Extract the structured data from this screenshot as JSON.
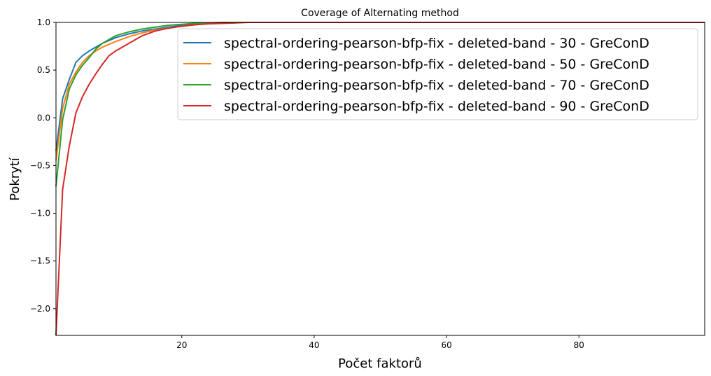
{
  "chart_data": {
    "type": "line",
    "title": "Coverage of Alternating method",
    "xlabel": "Počet faktorů",
    "ylabel": "Pokrytí",
    "xlim": [
      1,
      99
    ],
    "ylim": [
      -2.28,
      1.0
    ],
    "xticks": [
      20,
      40,
      60,
      80
    ],
    "yticks": [
      1.0,
      0.5,
      0.0,
      -0.5,
      -1.0,
      -1.5,
      -2.0
    ],
    "xtick_labels": [
      "20",
      "40",
      "60",
      "80"
    ],
    "ytick_labels": [
      "1.0",
      "0.5",
      "0.0",
      "−0.5",
      "−1.0",
      "−1.5",
      "−2.0"
    ],
    "grid": false,
    "legend_position": "top-right",
    "series": [
      {
        "name": "spectral-ordering-pearson-bfp-fix - deleted-band - 30 - GreConD",
        "color": "#1f77b4",
        "x": [
          1,
          2,
          3,
          4,
          5,
          6,
          7,
          8,
          9,
          10,
          12,
          14,
          16,
          18,
          20,
          22,
          24,
          26,
          28,
          30,
          35,
          40,
          50,
          60,
          70,
          80,
          90,
          99
        ],
        "y": [
          -0.35,
          0.2,
          0.4,
          0.58,
          0.65,
          0.7,
          0.74,
          0.78,
          0.81,
          0.84,
          0.88,
          0.91,
          0.93,
          0.95,
          0.97,
          0.98,
          0.99,
          0.995,
          1.0,
          1.0,
          1.0,
          1.0,
          1.0,
          1.0,
          1.0,
          1.0,
          1.0,
          1.0
        ]
      },
      {
        "name": "spectral-ordering-pearson-bfp-fix - deleted-band - 50 - GreConD",
        "color": "#ff7f0e",
        "x": [
          1,
          2,
          3,
          4,
          5,
          6,
          7,
          8,
          9,
          10,
          12,
          14,
          16,
          18,
          20,
          22,
          24,
          26,
          28,
          30,
          35,
          40,
          50,
          60,
          70,
          80,
          90,
          99
        ],
        "y": [
          -0.45,
          0.1,
          0.35,
          0.48,
          0.58,
          0.65,
          0.7,
          0.74,
          0.77,
          0.8,
          0.85,
          0.89,
          0.92,
          0.94,
          0.96,
          0.975,
          0.985,
          0.99,
          0.995,
          1.0,
          1.0,
          1.0,
          1.0,
          1.0,
          1.0,
          1.0,
          1.0,
          1.0
        ]
      },
      {
        "name": "spectral-ordering-pearson-bfp-fix - deleted-band - 70 - GreConD",
        "color": "#2ca02c",
        "x": [
          1,
          2,
          3,
          4,
          5,
          6,
          7,
          8,
          9,
          10,
          12,
          14,
          16,
          18,
          20,
          22,
          24,
          26,
          28,
          30,
          35,
          40,
          50,
          60,
          70,
          80,
          90,
          99
        ],
        "y": [
          -0.72,
          -0.02,
          0.3,
          0.45,
          0.55,
          0.63,
          0.72,
          0.78,
          0.82,
          0.86,
          0.9,
          0.93,
          0.95,
          0.97,
          0.98,
          0.99,
          0.995,
          1.0,
          1.0,
          1.0,
          1.0,
          1.0,
          1.0,
          1.0,
          1.0,
          1.0,
          1.0,
          1.0
        ]
      },
      {
        "name": "spectral-ordering-pearson-bfp-fix - deleted-band - 90 - GreConD",
        "color": "#d62728",
        "x": [
          1,
          2,
          3,
          4,
          5,
          6,
          7,
          8,
          9,
          10,
          12,
          14,
          16,
          18,
          20,
          22,
          24,
          26,
          28,
          30,
          35,
          40,
          50,
          60,
          70,
          80,
          90,
          99
        ],
        "y": [
          -2.28,
          -0.75,
          -0.3,
          0.05,
          0.22,
          0.35,
          0.46,
          0.56,
          0.65,
          0.7,
          0.78,
          0.86,
          0.91,
          0.94,
          0.96,
          0.975,
          0.985,
          0.99,
          0.995,
          1.0,
          1.0,
          1.0,
          1.0,
          1.0,
          1.0,
          1.0,
          1.0,
          1.0
        ]
      }
    ]
  }
}
